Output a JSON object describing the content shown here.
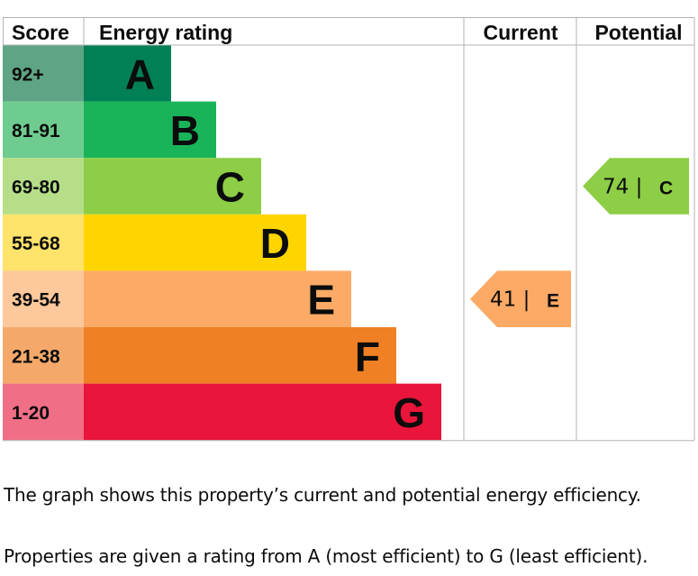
{
  "chart_data": {
    "type": "bar",
    "headers": {
      "score": "Score",
      "energy_rating": "Energy rating",
      "current": "Current",
      "potential": "Potential"
    },
    "bands": [
      {
        "score": "92+",
        "letter": "A",
        "color": "#008054",
        "score_color": "#5fa585"
      },
      {
        "score": "81-91",
        "letter": "B",
        "color": "#19b459",
        "score_color": "#6fcc90"
      },
      {
        "score": "69-80",
        "letter": "C",
        "color": "#8dce46",
        "score_color": "#b6de88"
      },
      {
        "score": "55-68",
        "letter": "D",
        "color": "#ffd500",
        "score_color": "#ffe36b"
      },
      {
        "score": "39-54",
        "letter": "E",
        "color": "#fcaa65",
        "score_color": "#fdc89b"
      },
      {
        "score": "21-38",
        "letter": "F",
        "color": "#ef8023",
        "score_color": "#f4a96a"
      },
      {
        "score": "1-20",
        "letter": "G",
        "color": "#e9153b",
        "score_color": "#f06f87"
      }
    ],
    "current": {
      "value": 41,
      "letter": "E",
      "color": "#fcaa65"
    },
    "potential": {
      "value": 74,
      "letter": "C",
      "color": "#8dce46"
    }
  },
  "description": {
    "line1": "The graph shows this property’s current and potential energy efficiency.",
    "line2": "Properties are given a rating from A (most efficient) to G (least efficient)."
  }
}
